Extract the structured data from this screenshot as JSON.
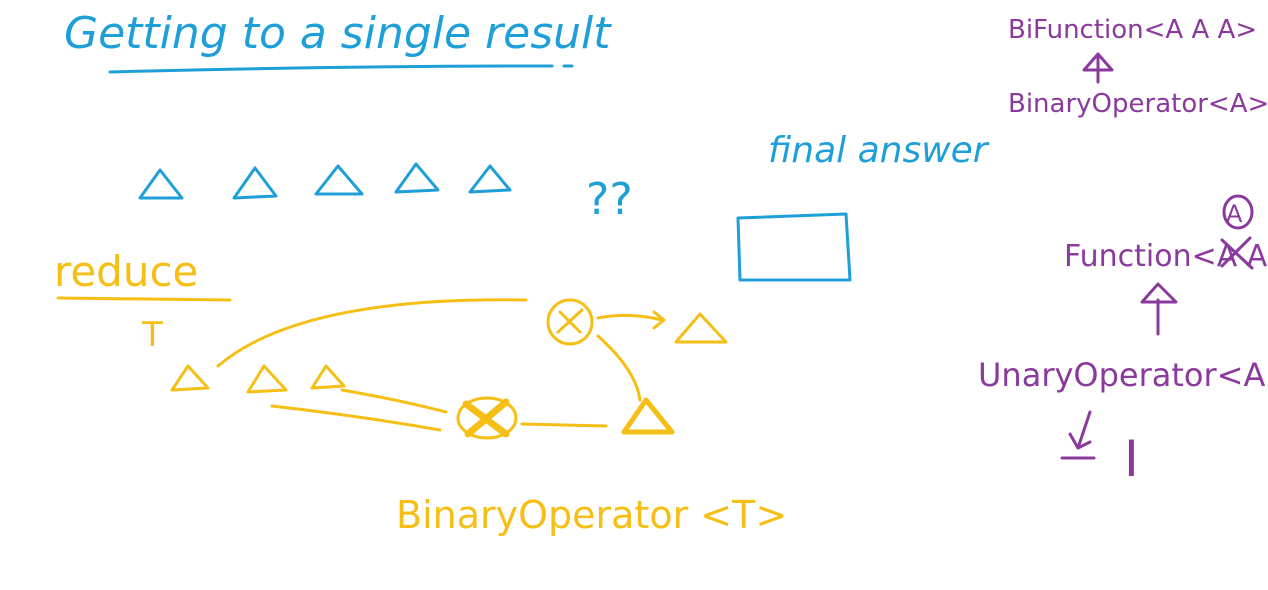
{
  "colors": {
    "blue": "#1f9fd8",
    "yellow": "#f5bf15",
    "purple": "#8a3a9c",
    "background": "#ffffff"
  },
  "title": "Getting to a single result",
  "blue_notes": {
    "question": "??",
    "final_answer_label": "final answer"
  },
  "yellow_notes": {
    "reduce_label": "reduce",
    "reduce_type": "T",
    "binary_operator_label": "BinaryOperator <T>"
  },
  "purple_notes": {
    "bifunction": "BiFunction<A A A>",
    "binary_operator": "BinaryOperator<A>",
    "function": "Function<A A>",
    "function_param_note": "A",
    "unary_operator": "UnaryOperator<A>",
    "identity_symbol": "I"
  }
}
